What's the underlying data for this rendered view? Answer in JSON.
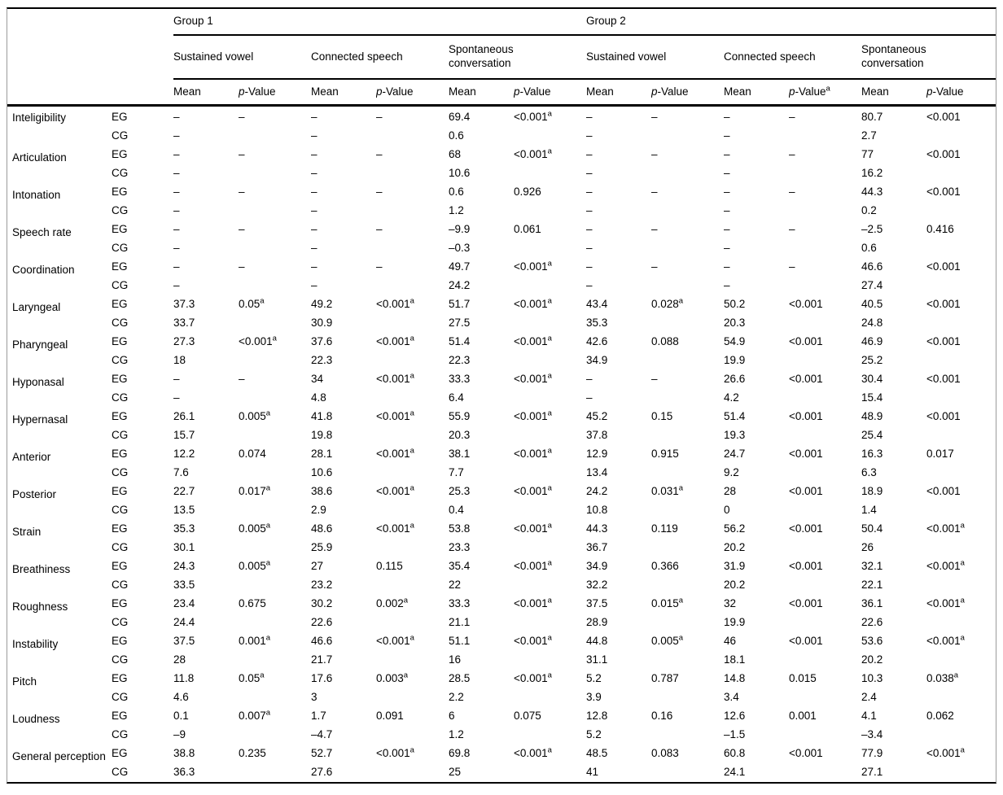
{
  "table": {
    "corner_label": "",
    "groups": [
      {
        "label": "Group 1"
      },
      {
        "label": "Group 2"
      }
    ],
    "conditions": [
      {
        "line1": "Sustained vowel",
        "line2": "",
        "p_sup": ""
      },
      {
        "line1": "Connected speech",
        "line2": "",
        "p_sup": ""
      },
      {
        "line1": "Spontaneous",
        "line2": "conversation",
        "p_sup": ""
      },
      {
        "line1": "Sustained vowel",
        "line2": "",
        "p_sup": ""
      },
      {
        "line1": "Connected speech",
        "line2": "",
        "p_sup": "a"
      },
      {
        "line1": "Spontaneous",
        "line2": "conversation",
        "p_sup": ""
      }
    ],
    "measure": {
      "mean": "Mean",
      "p_italic": "p",
      "p_rest": "-Value"
    },
    "eg_label": "EG",
    "cg_label": "CG",
    "rows": [
      {
        "parameter": "Inteligibility",
        "eg": [
          "–",
          "–",
          "–",
          "–",
          "69.4",
          "<0.001^a",
          "–",
          "–",
          "–",
          "–",
          "80.7",
          "<0.001"
        ],
        "cg": [
          "–",
          "",
          "–",
          "",
          "0.6",
          "",
          "–",
          "",
          "–",
          "",
          "2.7",
          ""
        ]
      },
      {
        "parameter": "Articulation",
        "eg": [
          "–",
          "–",
          "–",
          "–",
          "68",
          "<0.001^a",
          "–",
          "–",
          "–",
          "–",
          "77",
          "<0.001"
        ],
        "cg": [
          "–",
          "",
          "–",
          "",
          "10.6",
          "",
          "–",
          "",
          "–",
          "",
          "16.2",
          ""
        ]
      },
      {
        "parameter": "Intonation",
        "eg": [
          "–",
          "–",
          "–",
          "–",
          "0.6",
          "0.926",
          "–",
          "–",
          "–",
          "–",
          "44.3",
          "<0.001"
        ],
        "cg": [
          "–",
          "",
          "–",
          "",
          "1.2",
          "",
          "–",
          "",
          "–",
          "",
          "0.2",
          ""
        ]
      },
      {
        "parameter": "Speech rate",
        "eg": [
          "–",
          "–",
          "–",
          "–",
          "–9.9",
          "0.061",
          "–",
          "–",
          "–",
          "–",
          "–2.5",
          "0.416"
        ],
        "cg": [
          "–",
          "",
          "–",
          "",
          "–0.3",
          "",
          "–",
          "",
          "–",
          "",
          "0.6",
          ""
        ]
      },
      {
        "parameter": "Coordination",
        "eg": [
          "–",
          "–",
          "–",
          "–",
          "49.7",
          "<0.001^a",
          "–",
          "–",
          "–",
          "–",
          "46.6",
          "<0.001"
        ],
        "cg": [
          "–",
          "",
          "–",
          "",
          "24.2",
          "",
          "–",
          "",
          "–",
          "",
          "27.4",
          ""
        ]
      },
      {
        "parameter": "Laryngeal",
        "eg": [
          "37.3",
          "0.05^a",
          "49.2",
          "<0.001^a",
          "51.7",
          "<0.001^a",
          "43.4",
          "0.028^a",
          "50.2",
          "<0.001",
          "40.5",
          "<0.001"
        ],
        "cg": [
          "33.7",
          "",
          "30.9",
          "",
          "27.5",
          "",
          "35.3",
          "",
          "20.3",
          "",
          "24.8",
          ""
        ]
      },
      {
        "parameter": "Pharyngeal",
        "eg": [
          "27.3",
          "<0.001^a",
          "37.6",
          "<0.001^a",
          "51.4",
          "<0.001^a",
          "42.6",
          "0.088",
          "54.9",
          "<0.001",
          "46.9",
          "<0.001"
        ],
        "cg": [
          "18",
          "",
          "22.3",
          "",
          "22.3",
          "",
          "34.9",
          "",
          "19.9",
          "",
          "25.2",
          ""
        ]
      },
      {
        "parameter": "Hyponasal",
        "eg": [
          "–",
          "–",
          "34",
          "<0.001^a",
          "33.3",
          "<0.001^a",
          "–",
          "–",
          "26.6",
          "<0.001",
          "30.4",
          "<0.001"
        ],
        "cg": [
          "–",
          "",
          "4.8",
          "",
          "6.4",
          "",
          "–",
          "",
          "4.2",
          "",
          "15.4",
          ""
        ]
      },
      {
        "parameter": "Hypernasal",
        "eg": [
          "26.1",
          "0.005^a",
          "41.8",
          "<0.001^a",
          "55.9",
          "<0.001^a",
          "45.2",
          "0.15",
          "51.4",
          "<0.001",
          "48.9",
          "<0.001"
        ],
        "cg": [
          "15.7",
          "",
          "19.8",
          "",
          "20.3",
          "",
          "37.8",
          "",
          "19.3",
          "",
          "25.4",
          ""
        ]
      },
      {
        "parameter": "Anterior",
        "eg": [
          "12.2",
          "0.074",
          "28.1",
          "<0.001^a",
          "38.1",
          "<0.001^a",
          "12.9",
          "0.915",
          "24.7",
          "<0.001",
          "16.3",
          "0.017"
        ],
        "cg": [
          "7.6",
          "",
          "10.6",
          "",
          "7.7",
          "",
          "13.4",
          "",
          "9.2",
          "",
          "6.3",
          ""
        ]
      },
      {
        "parameter": "Posterior",
        "eg": [
          "22.7",
          "0.017^a",
          "38.6",
          "<0.001^a",
          "25.3",
          "<0.001^a",
          "24.2",
          "0.031^a",
          "28",
          "<0.001",
          "18.9",
          "<0.001"
        ],
        "cg": [
          "13.5",
          "",
          "2.9",
          "",
          "0.4",
          "",
          "10.8",
          "",
          "0",
          "",
          "1.4",
          ""
        ]
      },
      {
        "parameter": "Strain",
        "eg": [
          "35.3",
          "0.005^a",
          "48.6",
          "<0.001^a",
          "53.8",
          "<0.001^a",
          "44.3",
          "0.119",
          "56.2",
          "<0.001",
          "50.4",
          "<0.001^a"
        ],
        "cg": [
          "30.1",
          "",
          "25.9",
          "",
          "23.3",
          "",
          "36.7",
          "",
          "20.2",
          "",
          "26",
          ""
        ]
      },
      {
        "parameter": "Breathiness",
        "eg": [
          "24.3",
          "0.005^a",
          "27",
          "0.115",
          "35.4",
          "<0.001^a",
          "34.9",
          "0.366",
          "31.9",
          "<0.001",
          "32.1",
          "<0.001^a"
        ],
        "cg": [
          "33.5",
          "",
          "23.2",
          "",
          "22",
          "",
          "32.2",
          "",
          "20.2",
          "",
          "22.1",
          ""
        ]
      },
      {
        "parameter": "Roughness",
        "eg": [
          "23.4",
          "0.675",
          "30.2",
          "0.002^a",
          "33.3",
          "<0.001^a",
          "37.5",
          "0.015^a",
          "32",
          "<0.001",
          "36.1",
          "<0.001^a"
        ],
        "cg": [
          "24.4",
          "",
          "22.6",
          "",
          "21.1",
          "",
          "28.9",
          "",
          "19.9",
          "",
          "22.6",
          ""
        ]
      },
      {
        "parameter": "Instability",
        "eg": [
          "37.5",
          "0.001^a",
          "46.6",
          "<0.001^a",
          "51.1",
          "<0.001^a",
          "44.8",
          "0.005^a",
          "46",
          "<0.001",
          "53.6",
          "<0.001^a"
        ],
        "cg": [
          "28",
          "",
          "21.7",
          "",
          "16",
          "",
          "31.1",
          "",
          "18.1",
          "",
          "20.2",
          ""
        ]
      },
      {
        "parameter": "Pitch",
        "eg": [
          "11.8",
          "0.05^a",
          "17.6",
          "0.003^a",
          "28.5",
          "<0.001^a",
          "5.2",
          "0.787",
          "14.8",
          "0.015",
          "10.3",
          "0.038^a"
        ],
        "cg": [
          "4.6",
          "",
          "3",
          "",
          "2.2",
          "",
          "3.9",
          "",
          "3.4",
          "",
          "2.4",
          ""
        ]
      },
      {
        "parameter": "Loudness",
        "eg": [
          "0.1",
          "0.007^a",
          "1.7",
          "0.091",
          "6",
          "0.075",
          "12.8",
          "0.16",
          "12.6",
          "0.001",
          "4.1",
          "0.062"
        ],
        "cg": [
          "–9",
          "",
          "–4.7",
          "",
          "1.2",
          "",
          "5.2",
          "",
          "–1.5",
          "",
          "–3.4",
          ""
        ]
      },
      {
        "parameter": "General perception",
        "eg": [
          "38.8",
          "0.235",
          "52.7",
          "<0.001^a",
          "69.8",
          "<0.001^a",
          "48.5",
          "0.083",
          "60.8",
          "<0.001",
          "77.9",
          "<0.001^a"
        ],
        "cg": [
          "36.3",
          "",
          "27.6",
          "",
          "25",
          "",
          "41",
          "",
          "24.1",
          "",
          "27.1",
          ""
        ]
      }
    ]
  }
}
